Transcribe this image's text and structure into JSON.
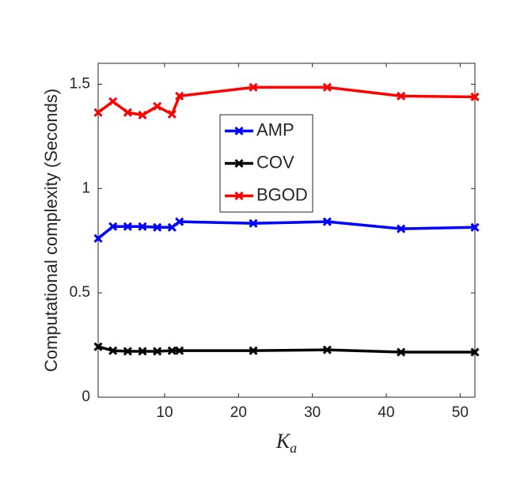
{
  "chart_data": {
    "type": "line",
    "y_label": "Computational complexity (Seconds)",
    "x_label": "K",
    "x_label_subscript": "a",
    "x": [
      1,
      3,
      5,
      7,
      9,
      11,
      12,
      22,
      32,
      42,
      52
    ],
    "series": [
      {
        "name": "AMP",
        "color": "#0000ff",
        "values": [
          0.761,
          0.818,
          0.818,
          0.818,
          0.814,
          0.814,
          0.841,
          0.833,
          0.841,
          0.807,
          0.814
        ]
      },
      {
        "name": "COV",
        "color": "#000000",
        "values": [
          0.242,
          0.223,
          0.22,
          0.22,
          0.22,
          0.223,
          0.223,
          0.223,
          0.227,
          0.216,
          0.216
        ]
      },
      {
        "name": "BGOD",
        "color": "#ff0000",
        "values": [
          1.364,
          1.417,
          1.364,
          1.352,
          1.394,
          1.356,
          1.443,
          1.485,
          1.485,
          1.443,
          1.439
        ]
      }
    ],
    "xlim": [
      1,
      52
    ],
    "xticks": [
      10,
      20,
      30,
      40,
      50
    ],
    "ylim": [
      0,
      1.6
    ],
    "yticks": [
      0,
      0.5,
      1,
      1.5
    ],
    "legend": "center"
  }
}
